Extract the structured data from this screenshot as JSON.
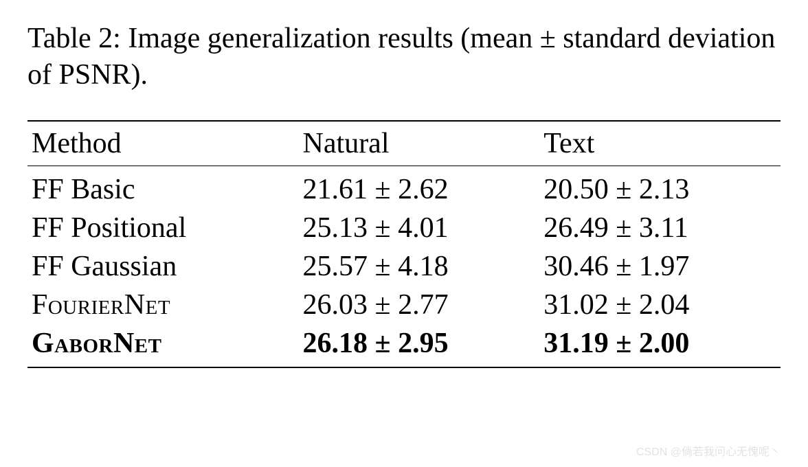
{
  "caption": "Table 2: Image generalization results (mean ± standard deviation of PSNR).",
  "table": {
    "type": "table",
    "columns": [
      "Method",
      "Natural",
      "Text"
    ],
    "column_widths_pct": [
      36,
      32,
      32
    ],
    "header_fontsize": 42,
    "cell_fontsize": 42,
    "border_top_width": 2.5,
    "header_rule_width": 1.5,
    "border_bottom_width": 2.5,
    "border_color": "#000000",
    "background_color": "#ffffff",
    "text_color": "#000000",
    "rows": [
      {
        "method": "FF Basic",
        "method_smallcaps": false,
        "natural": "21.61 ± 2.62",
        "text": "20.50 ± 2.13",
        "bold": false
      },
      {
        "method": "FF Positional",
        "method_smallcaps": false,
        "natural": "25.13 ± 4.01",
        "text": "26.49 ± 3.11",
        "bold": false
      },
      {
        "method": "FF Gaussian",
        "method_smallcaps": false,
        "natural": "25.57 ± 4.18",
        "text": "30.46 ± 1.97",
        "bold": false
      },
      {
        "method": "FourierNet",
        "method_smallcaps": true,
        "natural": "26.03 ± 2.77",
        "text": "31.02 ± 2.04",
        "bold": false
      },
      {
        "method": "GaborNet",
        "method_smallcaps": true,
        "natural": "26.18 ± 2.95",
        "text": "31.19 ± 2.00",
        "bold": true
      }
    ]
  },
  "watermark": "CSDN @倘若我问心无愧呢丶"
}
